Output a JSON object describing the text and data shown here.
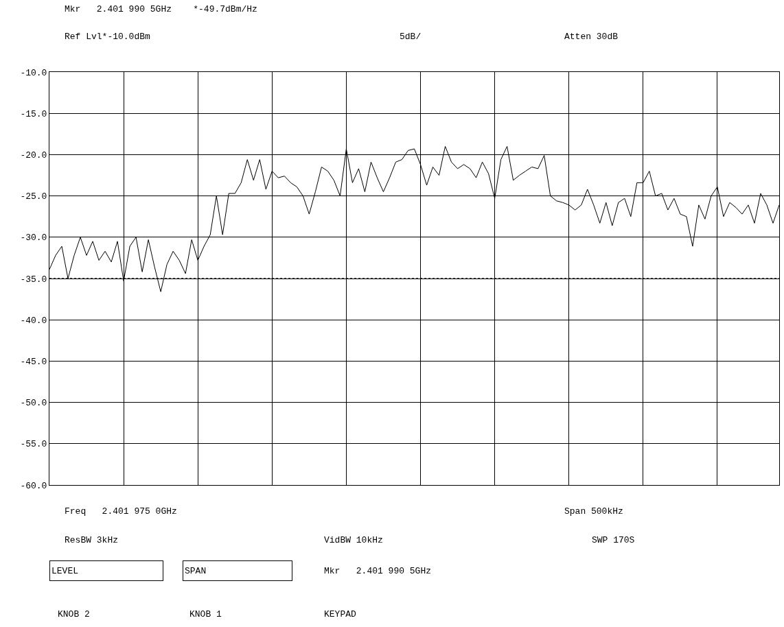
{
  "chart_data": {
    "type": "line",
    "annotations": [
      "Mkr   2.401 990 5GHz    *-49.7dBm/Hz",
      "Ref Lvl*-10.0dBm",
      "5dB/",
      "Atten 30dB",
      "Freq   2.401 975 0GHz",
      "Span 500kHz",
      "ResBW 3kHz",
      "VidBW 10kHz",
      "SWP 170S",
      "LEVEL",
      "SPAN",
      "Mkr   2.401 990 5GHz",
      "KNOB 2",
      "KNOB 1",
      "KEYPAD"
    ],
    "categories": [
      null,
      null,
      null,
      null,
      null,
      null,
      null,
      null,
      null,
      null,
      null,
      null,
      null,
      null,
      null,
      null,
      null,
      null,
      null,
      null,
      null,
      null,
      null,
      null,
      null,
      null,
      null,
      null,
      null,
      null,
      null,
      null,
      null,
      null,
      null,
      null,
      null,
      null,
      null,
      null,
      null,
      null,
      null,
      null,
      null,
      null,
      null,
      null,
      null,
      null,
      null,
      null,
      null,
      null,
      null,
      null,
      null,
      null,
      null,
      null,
      null,
      null,
      null,
      null,
      null,
      null,
      null,
      null,
      null,
      null,
      null,
      null,
      null,
      null,
      null,
      null,
      null,
      null,
      null,
      null,
      null,
      null,
      null,
      null,
      null,
      null,
      null,
      null,
      null,
      null,
      null,
      null,
      null,
      null,
      null,
      null,
      null,
      null,
      null,
      null,
      null,
      null,
      null,
      null,
      null,
      null,
      null,
      null,
      null,
      null,
      null,
      null,
      null,
      null,
      null,
      null,
      null,
      null,
      null
    ],
    "series": [
      {
        "color": "#000000",
        "values": [
          -33.9,
          -32.2,
          -31.1,
          -35,
          -32.2,
          -30,
          -32.2,
          -30.5,
          -32.8,
          -31.7,
          -33,
          -30.5,
          -35.3,
          -31.1,
          -30,
          -34.2,
          -30.3,
          -33.6,
          -36.6,
          -33.3,
          -31.7,
          -32.8,
          -34.4,
          -30.3,
          -32.8,
          -31.1,
          -29.7,
          -25,
          -29.7,
          -24.7,
          -24.7,
          -23.4,
          -20.6,
          -23.1,
          -20.6,
          -24.2,
          -22,
          -22.8,
          -22.6,
          -23.4,
          -23.9,
          -25,
          -27.2,
          -24.5,
          -21.5,
          -22,
          -23.1,
          -25,
          -19.3,
          -23.4,
          -21.7,
          -24.5,
          -20.9,
          -22.8,
          -24.5,
          -22.8,
          -20.9,
          -20.6,
          -19.5,
          -19.3,
          -21.2,
          -23.7,
          -21.5,
          -22.5,
          -19,
          -20.9,
          -21.7,
          -21.2,
          -21.7,
          -22.8,
          -20.9,
          -22.3,
          -25.3,
          -20.6,
          -19,
          -23.1,
          -22.5,
          -22,
          -21.5,
          -21.7,
          -20.1,
          -25,
          -25.6,
          -25.8,
          -26.1,
          -26.7,
          -26.1,
          -24.2,
          -26.1,
          -28.3,
          -25.8,
          -28.6,
          -25.8,
          -25.3,
          -27.5,
          -23.4,
          -23.4,
          -22,
          -25,
          -24.7,
          -26.7,
          -25.3,
          -27.2,
          -27.5,
          -31.1,
          -26.1,
          -27.8,
          -25,
          -23.9,
          -27.5,
          -25.8,
          -26.4,
          -27.2,
          -26.1,
          -28.3,
          -24.7,
          -26.1,
          -28.3,
          -26.1
        ]
      }
    ],
    "ylim": [
      -60,
      -10
    ],
    "yticks": [
      {
        "value": -10,
        "label": "-10.0"
      },
      {
        "value": -15,
        "label": "-15.0"
      },
      {
        "value": -20,
        "label": "-20.0"
      },
      {
        "value": -25,
        "label": "-25.0"
      },
      {
        "value": -30,
        "label": "-30.0"
      },
      {
        "value": -35,
        "label": "-35.0"
      },
      {
        "value": -40,
        "label": "-40.0"
      },
      {
        "value": -45,
        "label": "-45.0"
      },
      {
        "value": -50,
        "label": "-50.0"
      },
      {
        "value": -55,
        "label": "-55.0"
      },
      {
        "value": -60,
        "label": "-60.0"
      }
    ],
    "ref_lines": [
      {
        "axis": "y",
        "value": -35,
        "color": "#000000",
        "line_style": "dotted"
      }
    ],
    "tick_labels": "y",
    "grid": true,
    "marker": "none",
    "line_style": "solid"
  }
}
